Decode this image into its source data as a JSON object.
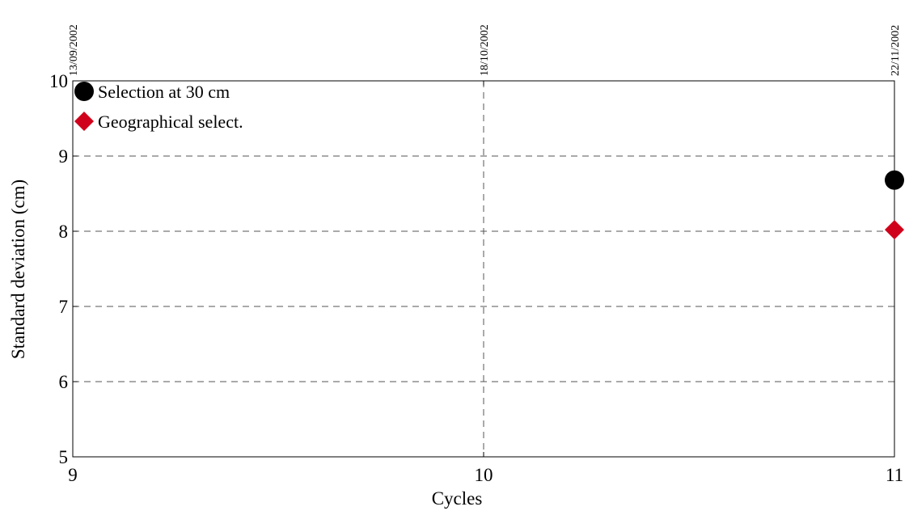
{
  "chart_data": {
    "type": "scatter",
    "xlabel": "Cycles",
    "ylabel": "Standard deviation (cm)",
    "xlim": [
      9,
      11
    ],
    "ylim": [
      5,
      10
    ],
    "x_ticks": [
      9,
      10,
      11
    ],
    "y_ticks": [
      5,
      6,
      7,
      8,
      9,
      10
    ],
    "top_axis_labels": [
      {
        "x": 9,
        "label": "13/09/2002"
      },
      {
        "x": 10,
        "label": "18/10/2002"
      },
      {
        "x": 11,
        "label": "22/11/2002"
      }
    ],
    "grid": true,
    "legend_position": "top-left",
    "series": [
      {
        "name": "Selection at 30 cm",
        "marker": "circle",
        "color": "#000000",
        "points": [
          [
            11,
            8.68
          ]
        ]
      },
      {
        "name": "Geographical select.",
        "marker": "diamond",
        "color": "#d0021b",
        "points": [
          [
            11,
            8.02
          ]
        ]
      }
    ]
  }
}
